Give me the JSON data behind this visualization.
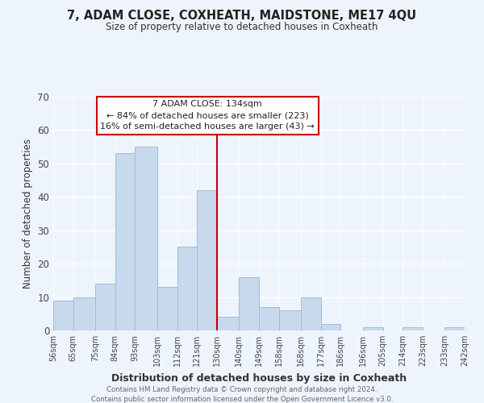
{
  "title": "7, ADAM CLOSE, COXHEATH, MAIDSTONE, ME17 4QU",
  "subtitle": "Size of property relative to detached houses in Coxheath",
  "xlabel": "Distribution of detached houses by size in Coxheath",
  "ylabel": "Number of detached properties",
  "bar_color": "#c8d9ee",
  "bar_edge_color": "#a0bdd8",
  "bins": [
    56,
    65,
    75,
    84,
    93,
    103,
    112,
    121,
    130,
    140,
    149,
    158,
    168,
    177,
    186,
    196,
    205,
    214,
    223,
    233,
    242
  ],
  "counts": [
    9,
    10,
    14,
    53,
    55,
    13,
    25,
    42,
    4,
    16,
    7,
    6,
    10,
    2,
    0,
    1,
    0,
    1,
    0,
    1
  ],
  "tick_labels": [
    "56sqm",
    "65sqm",
    "75sqm",
    "84sqm",
    "93sqm",
    "103sqm",
    "112sqm",
    "121sqm",
    "130sqm",
    "140sqm",
    "149sqm",
    "158sqm",
    "168sqm",
    "177sqm",
    "186sqm",
    "196sqm",
    "205sqm",
    "214sqm",
    "223sqm",
    "233sqm",
    "242sqm"
  ],
  "ylim": [
    0,
    70
  ],
  "yticks": [
    0,
    10,
    20,
    30,
    40,
    50,
    60,
    70
  ],
  "vline_x": 130,
  "vline_color": "#cc0000",
  "annotation_title": "7 ADAM CLOSE: 134sqm",
  "annotation_line1": "← 84% of detached houses are smaller (223)",
  "annotation_line2": "16% of semi-detached houses are larger (43) →",
  "annotation_box_color": "#ffffff",
  "annotation_box_edge": "#cc0000",
  "footer1": "Contains HM Land Registry data © Crown copyright and database right 2024.",
  "footer2": "Contains public sector information licensed under the Open Government Licence v3.0.",
  "background_color": "#eef4fb",
  "grid_color": "#d0dcea",
  "white_grid": "#ffffff"
}
